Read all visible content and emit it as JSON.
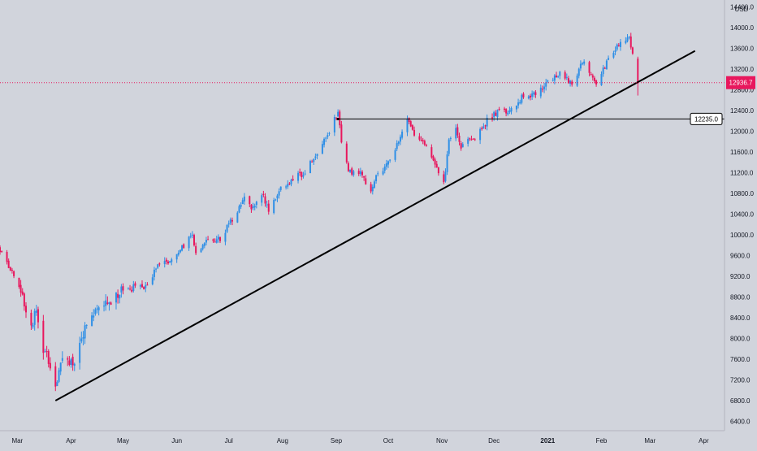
{
  "currency_label": "USD",
  "current_price_label": "12936.7",
  "level_label": "12235.0",
  "colors": {
    "background": "#d1d4dc",
    "up_candle": "#2f8fe6",
    "down_candle": "#e8175d",
    "trendline": "#000000",
    "level_line": "#000000",
    "price_line": "#e8175d",
    "axis_text": "#131722"
  },
  "chart_data": {
    "type": "candlestick",
    "title": "",
    "xlabel": "",
    "ylabel": "",
    "y_axis_position": "right",
    "ylim": [
      6220,
      14500
    ],
    "y_ticks": [
      "6400.0",
      "6800.0",
      "7200.0",
      "7600.0",
      "8000.0",
      "8400.0",
      "8800.0",
      "9200.0",
      "9600.0",
      "10000.0",
      "10400.0",
      "10800.0",
      "11200.0",
      "11600.0",
      "12000.0",
      "12400.0",
      "12800.0",
      "13200.0",
      "13600.0",
      "14000.0",
      "14400.0"
    ],
    "x_ticks": [
      {
        "label": "Mar",
        "date": "2020-03-01"
      },
      {
        "label": "Apr",
        "date": "2020-04-01"
      },
      {
        "label": "May",
        "date": "2020-05-01"
      },
      {
        "label": "Jun",
        "date": "2020-06-01"
      },
      {
        "label": "Jul",
        "date": "2020-07-01"
      },
      {
        "label": "Aug",
        "date": "2020-08-01"
      },
      {
        "label": "Sep",
        "date": "2020-09-01"
      },
      {
        "label": "Oct",
        "date": "2020-10-01"
      },
      {
        "label": "Nov",
        "date": "2020-11-01"
      },
      {
        "label": "Dec",
        "date": "2020-12-01"
      },
      {
        "label": "2021",
        "date": "2021-01-01",
        "bold": true
      },
      {
        "label": "Feb",
        "date": "2021-02-01"
      },
      {
        "label": "Mar",
        "date": "2021-03-01"
      },
      {
        "label": "Apr",
        "date": "2021-04-01"
      }
    ],
    "x_range": [
      "2020-02-20",
      "2021-04-13"
    ],
    "price_path": [
      [
        "2020-02-20",
        9700
      ],
      [
        "2020-02-27",
        9300
      ],
      [
        "2020-03-05",
        8700
      ],
      [
        "2020-03-09",
        8200
      ],
      [
        "2020-03-12",
        8600
      ],
      [
        "2020-03-16",
        7800
      ],
      [
        "2020-03-20",
        7500
      ],
      [
        "2020-03-23",
        7000
      ],
      [
        "2020-03-27",
        7600
      ],
      [
        "2020-04-02",
        7500
      ],
      [
        "2020-04-09",
        8200
      ],
      [
        "2020-04-16",
        8600
      ],
      [
        "2020-04-23",
        8700
      ],
      [
        "2020-04-30",
        8900
      ],
      [
        "2020-05-07",
        9000
      ],
      [
        "2020-05-14",
        9000
      ],
      [
        "2020-05-21",
        9400
      ],
      [
        "2020-05-28",
        9500
      ],
      [
        "2020-06-05",
        9800
      ],
      [
        "2020-06-10",
        10000
      ],
      [
        "2020-06-12",
        9650
      ],
      [
        "2020-06-19",
        9900
      ],
      [
        "2020-06-26",
        9900
      ],
      [
        "2020-07-02",
        10250
      ],
      [
        "2020-07-10",
        10700
      ],
      [
        "2020-07-14",
        10500
      ],
      [
        "2020-07-20",
        10800
      ],
      [
        "2020-07-24",
        10500
      ],
      [
        "2020-07-31",
        10900
      ],
      [
        "2020-08-07",
        11100
      ],
      [
        "2020-08-14",
        11200
      ],
      [
        "2020-08-21",
        11600
      ],
      [
        "2020-08-28",
        12000
      ],
      [
        "2020-09-02",
        12400
      ],
      [
        "2020-09-04",
        11800
      ],
      [
        "2020-09-08",
        11200
      ],
      [
        "2020-09-15",
        11200
      ],
      [
        "2020-09-21",
        10800
      ],
      [
        "2020-09-25",
        11200
      ],
      [
        "2020-10-02",
        11400
      ],
      [
        "2020-10-12",
        12200
      ],
      [
        "2020-10-16",
        11900
      ],
      [
        "2020-10-23",
        11700
      ],
      [
        "2020-10-28",
        11300
      ],
      [
        "2020-11-02",
        11000
      ],
      [
        "2020-11-05",
        11800
      ],
      [
        "2020-11-09",
        12100
      ],
      [
        "2020-11-12",
        11700
      ],
      [
        "2020-11-20",
        11900
      ],
      [
        "2020-11-27",
        12200
      ],
      [
        "2020-12-04",
        12400
      ],
      [
        "2020-12-11",
        12400
      ],
      [
        "2020-12-18",
        12700
      ],
      [
        "2020-12-24",
        12700
      ],
      [
        "2020-12-31",
        12900
      ],
      [
        "2021-01-08",
        13100
      ],
      [
        "2021-01-15",
        12900
      ],
      [
        "2021-01-22",
        13400
      ],
      [
        "2021-01-27",
        13000
      ],
      [
        "2021-01-29",
        12900
      ],
      [
        "2021-02-05",
        13400
      ],
      [
        "2021-02-12",
        13700
      ],
      [
        "2021-02-17",
        13800
      ],
      [
        "2021-02-19",
        13500
      ],
      [
        "2021-02-22",
        12937
      ]
    ],
    "trendline": {
      "from": {
        "date": "2020-03-23",
        "price": 6800
      },
      "to": {
        "date": "2021-03-27",
        "price": 13550
      }
    },
    "horizontal_level": {
      "price": 12235,
      "from_date": "2020-09-02",
      "label": "12235.0"
    },
    "current_price": 12936.7
  }
}
